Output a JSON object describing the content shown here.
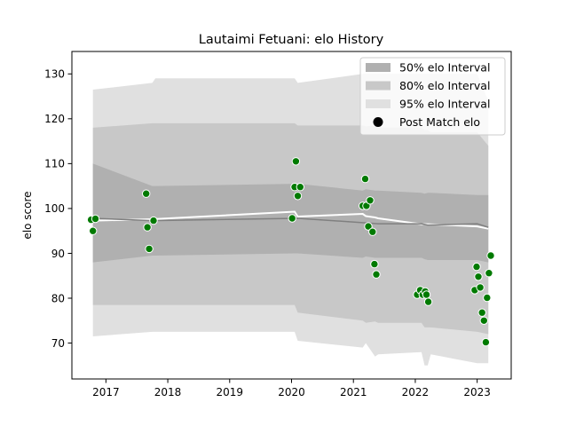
{
  "chart_data": {
    "type": "line",
    "title": "Lautaimi Fetuani: elo History",
    "xlabel": "",
    "ylabel": "elo score",
    "xlim": [
      2016.45,
      2023.55
    ],
    "ylim": [
      62,
      135
    ],
    "x_ticks": [
      2017,
      2018,
      2019,
      2020,
      2021,
      2022,
      2023
    ],
    "x_tick_labels": [
      "2017",
      "2018",
      "2019",
      "2020",
      "2021",
      "2022",
      "2023"
    ],
    "y_ticks": [
      70,
      80,
      90,
      100,
      110,
      120,
      130
    ],
    "y_tick_labels": [
      "70",
      "80",
      "90",
      "100",
      "110",
      "120",
      "130"
    ],
    "grid": false,
    "legend_position": "top-right",
    "legend": [
      {
        "label": "50% elo Interval",
        "color": "#b0b0b0",
        "kind": "patch"
      },
      {
        "label": "80% elo Interval",
        "color": "#c8c8c8",
        "kind": "patch"
      },
      {
        "label": "95% elo Interval",
        "color": "#e0e0e0",
        "kind": "patch"
      },
      {
        "label": "Post Match elo",
        "color": "#000000",
        "kind": "marker"
      }
    ],
    "band_x": [
      2016.79,
      2017.75,
      2017.8,
      2020.05,
      2020.1,
      2021.15,
      2021.2,
      2021.35,
      2021.4,
      2022.1,
      2022.15,
      2022.2,
      2022.25,
      2023.0,
      2023.18
    ],
    "band_50_upper": [
      110,
      105,
      105,
      105.5,
      105.5,
      104,
      104.3,
      104,
      104,
      103.5,
      103.3,
      103.5,
      103.5,
      103,
      103
    ],
    "band_50_lower": [
      88,
      89.5,
      89.5,
      90,
      90,
      89,
      89.3,
      89,
      89,
      89,
      88.7,
      88.5,
      88.5,
      88.5,
      88
    ],
    "band_80_upper": [
      118,
      119,
      119,
      119,
      118.5,
      118.5,
      118.3,
      118.5,
      118,
      118,
      117.5,
      117.5,
      117,
      117,
      114
    ],
    "band_80_lower": [
      78.5,
      78.5,
      78.5,
      78.5,
      76.8,
      75,
      74.5,
      74.8,
      74.5,
      74.5,
      73.5,
      73.5,
      73.5,
      72.5,
      72
    ],
    "band_95_upper": [
      126.5,
      128,
      129,
      129,
      128,
      130,
      130,
      130,
      130,
      130,
      130,
      130,
      130,
      130,
      124
    ],
    "band_95_lower": [
      71.5,
      72.5,
      72.5,
      72.5,
      70.5,
      69,
      70,
      67,
      67.5,
      68,
      65,
      65,
      67.5,
      65.5,
      65.5
    ],
    "mean_line": {
      "color": "#808080",
      "x": [
        2016.79,
        2017.75,
        2020.1,
        2021.2,
        2021.4,
        2022.1,
        2022.2,
        2023.0,
        2023.18
      ],
      "y": [
        97.8,
        97.3,
        97.8,
        96.8,
        96.6,
        96.6,
        96.3,
        96.6,
        95.8
      ]
    },
    "white_line": {
      "color": "#ffffff",
      "x": [
        2016.79,
        2017.75,
        2020.05,
        2020.1,
        2021.15,
        2021.2,
        2021.35,
        2021.4,
        2022.1,
        2022.2,
        2023.0,
        2023.18
      ],
      "y": [
        97.3,
        97.6,
        99.3,
        98.2,
        98.8,
        98.3,
        98,
        97.8,
        96.5,
        96.5,
        96,
        95.5
      ]
    },
    "points": {
      "name": "Post Match elo",
      "color": "#007a00",
      "x": [
        2016.76,
        2016.79,
        2016.83,
        2017.65,
        2017.67,
        2017.7,
        2017.77,
        2020.01,
        2020.05,
        2020.07,
        2020.1,
        2020.14,
        2021.15,
        2021.19,
        2021.21,
        2021.24,
        2021.27,
        2021.31,
        2021.34,
        2021.37,
        2022.03,
        2022.08,
        2022.12,
        2022.16,
        2022.18,
        2022.21,
        2022.96,
        2022.99,
        2023.02,
        2023.05,
        2023.08,
        2023.11,
        2023.14,
        2023.16,
        2023.19,
        2023.22
      ],
      "y": [
        97.5,
        95,
        97.7,
        103.3,
        95.8,
        91,
        97.3,
        97.8,
        104.8,
        110.5,
        102.8,
        104.8,
        100.6,
        106.6,
        100.6,
        96,
        101.8,
        94.8,
        87.6,
        85.3,
        80.8,
        81.8,
        80.8,
        81.5,
        80.8,
        79.2,
        81.8,
        87,
        84.8,
        82.4,
        76.8,
        75,
        70.2,
        80.1,
        85.6,
        89.5
      ]
    }
  }
}
